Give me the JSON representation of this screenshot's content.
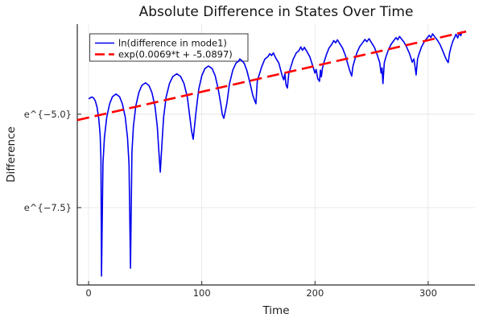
{
  "figure": {
    "background": "#ffffff"
  },
  "chart_data": {
    "type": "line",
    "title": "Absolute Difference in States Over Time",
    "xlabel": "Time",
    "ylabel": "Difference",
    "x_axis": {
      "tick_values": [
        0,
        100,
        200,
        300
      ],
      "tick_labels": [
        "0",
        "100",
        "200",
        "300"
      ],
      "lim": [
        -10,
        341.3
      ]
    },
    "y_axis": {
      "scale": "ln",
      "tick_values": [
        -5.0,
        -7.5
      ],
      "tick_labels": [
        "e^{−5.0}",
        "e^{−7.5}"
      ],
      "lim": [
        -9.57,
        -2.59
      ]
    },
    "grid": true,
    "legend_position": "top-left",
    "colors": {
      "blue_series": "#0000ee",
      "red_series": "#ff0000",
      "grid": "#e7e7e7",
      "spine": "#2a2a2a",
      "legend_border": "#4a4a4a",
      "text": "#1f1f1f"
    },
    "series": [
      {
        "name": "ln(difference in mode1)",
        "style": "solid",
        "color": "#0000ee",
        "points": [
          [
            0,
            -4.59
          ],
          [
            1.5,
            -4.56
          ],
          [
            3,
            -4.54
          ],
          [
            4.5,
            -4.57
          ],
          [
            6,
            -4.65
          ],
          [
            7.5,
            -4.82
          ],
          [
            9,
            -5.12
          ],
          [
            10.2,
            -5.55
          ],
          [
            10.9,
            -6.2
          ],
          [
            11.4,
            -9.33
          ],
          [
            12.7,
            -6.32
          ],
          [
            14,
            -5.63
          ],
          [
            16,
            -5.08
          ],
          [
            18.6,
            -4.72
          ],
          [
            21.1,
            -4.53
          ],
          [
            24.2,
            -4.46
          ],
          [
            27.3,
            -4.53
          ],
          [
            29.8,
            -4.72
          ],
          [
            32.4,
            -5.08
          ],
          [
            34.4,
            -5.63
          ],
          [
            35.7,
            -6.35
          ],
          [
            37,
            -9.12
          ],
          [
            38.3,
            -6.02
          ],
          [
            39.6,
            -5.33
          ],
          [
            41.7,
            -4.78
          ],
          [
            44.4,
            -4.42
          ],
          [
            47,
            -4.23
          ],
          [
            50.2,
            -4.16
          ],
          [
            53.3,
            -4.23
          ],
          [
            55.9,
            -4.42
          ],
          [
            58.6,
            -4.78
          ],
          [
            60.7,
            -5.33
          ],
          [
            62,
            -5.95
          ],
          [
            63.3,
            -6.55
          ],
          [
            64.8,
            -5.78
          ],
          [
            66.2,
            -5.09
          ],
          [
            68.5,
            -4.54
          ],
          [
            71.4,
            -4.18
          ],
          [
            74.4,
            -3.99
          ],
          [
            77.9,
            -3.92
          ],
          [
            81.3,
            -3.99
          ],
          [
            84.3,
            -4.18
          ],
          [
            87.2,
            -4.54
          ],
          [
            89.5,
            -5.09
          ],
          [
            91,
            -5.45
          ],
          [
            92.4,
            -5.67
          ],
          [
            93.8,
            -5.25
          ],
          [
            95.1,
            -4.88
          ],
          [
            97.3,
            -4.33
          ],
          [
            100,
            -3.97
          ],
          [
            102.7,
            -3.78
          ],
          [
            105.9,
            -3.71
          ],
          [
            109.1,
            -3.78
          ],
          [
            111.8,
            -3.97
          ],
          [
            114.5,
            -4.33
          ],
          [
            116.7,
            -4.72
          ],
          [
            118.1,
            -5.0
          ],
          [
            119.4,
            -5.11
          ],
          [
            120.8,
            -4.92
          ],
          [
            122.2,
            -4.7
          ],
          [
            124.5,
            -4.18
          ],
          [
            127.4,
            -3.82
          ],
          [
            130.2,
            -3.63
          ],
          [
            132.5,
            -3.58
          ],
          [
            133.6,
            -3.52
          ],
          [
            135.5,
            -3.57
          ],
          [
            137.5,
            -3.64
          ],
          [
            139.9,
            -3.84
          ],
          [
            142.7,
            -4.18
          ],
          [
            145.1,
            -4.5
          ],
          [
            146.5,
            -4.62
          ],
          [
            147.8,
            -4.72
          ],
          [
            149,
            -4.12
          ],
          [
            150.6,
            -3.96
          ],
          [
            152.9,
            -3.73
          ],
          [
            155.6,
            -3.53
          ],
          [
            158.4,
            -3.46
          ],
          [
            160,
            -3.38
          ],
          [
            161.7,
            -3.43
          ],
          [
            163.2,
            -3.36
          ],
          [
            165.2,
            -3.49
          ],
          [
            168.1,
            -3.63
          ],
          [
            170.9,
            -3.96
          ],
          [
            172.4,
            -4.08
          ],
          [
            173.4,
            -3.92
          ],
          [
            174.5,
            -4.22
          ],
          [
            175.6,
            -4.3
          ],
          [
            176.8,
            -3.92
          ],
          [
            178.4,
            -3.76
          ],
          [
            180.7,
            -3.53
          ],
          [
            183.5,
            -3.36
          ],
          [
            185.8,
            -3.3
          ],
          [
            187.4,
            -3.2
          ],
          [
            189,
            -3.29
          ],
          [
            190.6,
            -3.21
          ],
          [
            192.6,
            -3.31
          ],
          [
            195.4,
            -3.46
          ],
          [
            198.2,
            -3.73
          ],
          [
            199.9,
            -3.9
          ],
          [
            201,
            -3.8
          ],
          [
            202.4,
            -4.05
          ],
          [
            204,
            -4.12
          ],
          [
            204.8,
            -3.82
          ],
          [
            205.6,
            -4.0
          ],
          [
            206.6,
            -3.76
          ],
          [
            208,
            -3.6
          ],
          [
            210,
            -3.41
          ],
          [
            212.4,
            -3.23
          ],
          [
            214.8,
            -3.13
          ],
          [
            216.6,
            -3.03
          ],
          [
            218.2,
            -3.09
          ],
          [
            219.8,
            -3.01
          ],
          [
            221.8,
            -3.11
          ],
          [
            224.3,
            -3.23
          ],
          [
            226.9,
            -3.43
          ],
          [
            229.4,
            -3.7
          ],
          [
            231,
            -3.86
          ],
          [
            232.4,
            -3.98
          ],
          [
            233.5,
            -3.72
          ],
          [
            235,
            -3.56
          ],
          [
            237,
            -3.36
          ],
          [
            239.5,
            -3.19
          ],
          [
            242,
            -3.09
          ],
          [
            244.1,
            -3.0
          ],
          [
            245.8,
            -3.06
          ],
          [
            247.8,
            -2.98
          ],
          [
            250,
            -3.09
          ],
          [
            252.5,
            -3.21
          ],
          [
            255,
            -3.41
          ],
          [
            257.2,
            -3.62
          ],
          [
            258.4,
            -3.9
          ],
          [
            259.2,
            -3.76
          ],
          [
            260,
            -4.18
          ],
          [
            261.2,
            -3.62
          ],
          [
            262.7,
            -3.46
          ],
          [
            264.7,
            -3.29
          ],
          [
            267.2,
            -3.13
          ],
          [
            269.6,
            -3.03
          ],
          [
            271.6,
            -2.95
          ],
          [
            273.1,
            -3.01
          ],
          [
            274.7,
            -2.92
          ],
          [
            276.5,
            -2.99
          ],
          [
            278.6,
            -3.07
          ],
          [
            281.1,
            -3.21
          ],
          [
            283.6,
            -3.39
          ],
          [
            285.9,
            -3.61
          ],
          [
            287.4,
            -3.52
          ],
          [
            288.4,
            -3.73
          ],
          [
            289.3,
            -3.95
          ],
          [
            290.6,
            -3.52
          ],
          [
            292.1,
            -3.37
          ],
          [
            294.1,
            -3.2
          ],
          [
            296.6,
            -3.06
          ],
          [
            299,
            -2.96
          ],
          [
            300.9,
            -2.89
          ],
          [
            302.4,
            -2.95
          ],
          [
            303.9,
            -2.85
          ],
          [
            305.9,
            -2.93
          ],
          [
            307.9,
            -3.01
          ],
          [
            310.4,
            -3.13
          ],
          [
            312.9,
            -3.31
          ],
          [
            314.9,
            -3.46
          ],
          [
            316.4,
            -3.56
          ],
          [
            317.7,
            -3.62
          ],
          [
            318.9,
            -3.36
          ],
          [
            320.1,
            -3.21
          ],
          [
            321.6,
            -3.06
          ],
          [
            323.1,
            -2.96
          ],
          [
            324.6,
            -2.86
          ],
          [
            326,
            -2.96
          ],
          [
            327.5,
            -2.83
          ],
          [
            328.8,
            -2.9
          ],
          [
            330,
            -2.78
          ]
        ]
      },
      {
        "name": "exp(0.0069*t + -5.0897)",
        "style": "dashed",
        "color": "#ff0000",
        "fit": {
          "slope": 0.0069,
          "intercept": -5.0897
        },
        "t_range": [
          -9.9,
          333.5
        ]
      }
    ]
  }
}
